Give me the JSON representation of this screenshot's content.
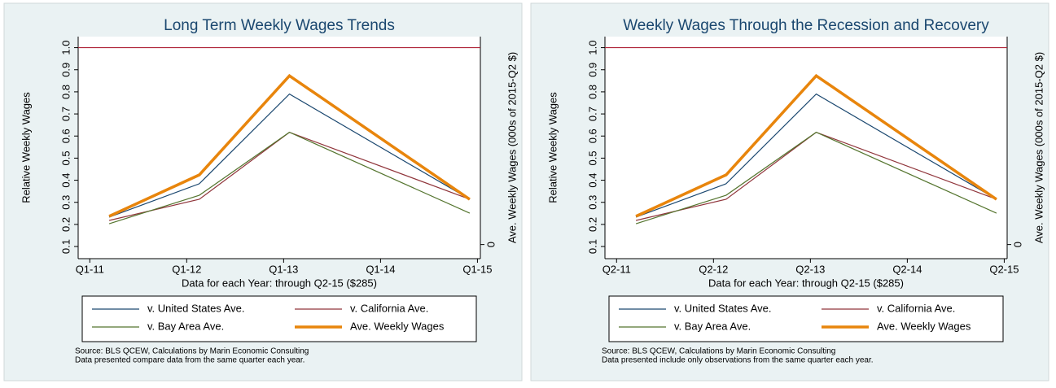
{
  "chart_data": [
    {
      "type": "line",
      "title": "Long Term Weekly Wages Trends",
      "xlabel": "Data for each Year: through Q2-15 ($285)",
      "ylabel": "Relative Weekly Wages",
      "y2label": "Ave. Weekly Wages (000s of 2015-Q2 $)",
      "x": [
        0.2,
        1.13,
        2.06,
        3.92
      ],
      "xlim": [
        -0.12,
        4.03
      ],
      "xticks": [
        {
          "value": 0,
          "label": "Q1-11"
        },
        {
          "value": 1,
          "label": "Q1-12"
        },
        {
          "value": 2,
          "label": "Q1-13"
        },
        {
          "value": 3,
          "label": "Q1-14"
        },
        {
          "value": 4,
          "label": "Q1-15"
        }
      ],
      "ylim": [
        0.045,
        1.05
      ],
      "yticks": [
        0.1,
        0.2,
        0.3,
        0.4,
        0.5,
        0.6,
        0.7,
        0.8,
        0.9,
        {
          "value": 1,
          "label": "1.0"
        }
      ],
      "y2lim": [
        -0.07,
        1.03
      ],
      "y2ticks": [
        0
      ],
      "reference_line": 1,
      "reference_color": "#b0263a",
      "series": [
        {
          "name": "v. United States Ave.",
          "color": "#1a476f",
          "values": [
            0.233,
            0.384,
            0.79,
            0.314
          ]
        },
        {
          "name": "v. California Ave.",
          "color": "#90353b",
          "values": [
            0.218,
            0.314,
            0.617,
            0.314
          ]
        },
        {
          "name": "v. Bay Area Ave.",
          "color": "#55752f",
          "values": [
            0.203,
            0.332,
            0.617,
            0.251
          ]
        },
        {
          "name": "Ave. Weekly Wages",
          "color": "#e8850c",
          "axis": "y2",
          "values": [
            0.14,
            0.345,
            0.836,
            0.224
          ]
        }
      ],
      "notes": [
        "Source: BLS QCEW, Calculations by Marin Economic Consulting",
        "Data presented compare data from the same quarter each year."
      ]
    },
    {
      "type": "line",
      "title": "Weekly Wages Through the Recession and Recovery",
      "xlabel": "Data for each Year: through Q2-15 ($285)",
      "ylabel": "Relative Weekly Wages",
      "y2label": "Ave. Weekly Wages (000s of 2015-Q2 $)",
      "x": [
        0.2,
        1.13,
        2.06,
        3.92
      ],
      "xlim": [
        -0.12,
        4.03
      ],
      "xticks": [
        {
          "value": 0,
          "label": "Q2-11"
        },
        {
          "value": 1,
          "label": "Q2-12"
        },
        {
          "value": 2,
          "label": "Q2-13"
        },
        {
          "value": 3,
          "label": "Q2-14"
        },
        {
          "value": 4,
          "label": "Q2-15"
        }
      ],
      "ylim": [
        0.045,
        1.05
      ],
      "yticks": [
        0.1,
        0.2,
        0.3,
        0.4,
        0.5,
        0.6,
        0.7,
        0.8,
        0.9,
        {
          "value": 1,
          "label": "1.0"
        }
      ],
      "y2lim": [
        -0.07,
        1.03
      ],
      "y2ticks": [
        0
      ],
      "reference_line": 1,
      "reference_color": "#b0263a",
      "series": [
        {
          "name": "v. United States Ave.",
          "color": "#1a476f",
          "values": [
            0.233,
            0.384,
            0.79,
            0.314
          ]
        },
        {
          "name": "v. California Ave.",
          "color": "#90353b",
          "values": [
            0.218,
            0.314,
            0.617,
            0.314
          ]
        },
        {
          "name": "v. Bay Area Ave.",
          "color": "#55752f",
          "values": [
            0.203,
            0.332,
            0.617,
            0.251
          ]
        },
        {
          "name": "Ave. Weekly Wages",
          "color": "#e8850c",
          "axis": "y2",
          "values": [
            0.14,
            0.345,
            0.836,
            0.224
          ]
        }
      ],
      "notes": [
        "Source: BLS QCEW, Calculations by Marin Economic Consulting",
        "Data presented include only observations from the same quarter each year."
      ]
    }
  ]
}
